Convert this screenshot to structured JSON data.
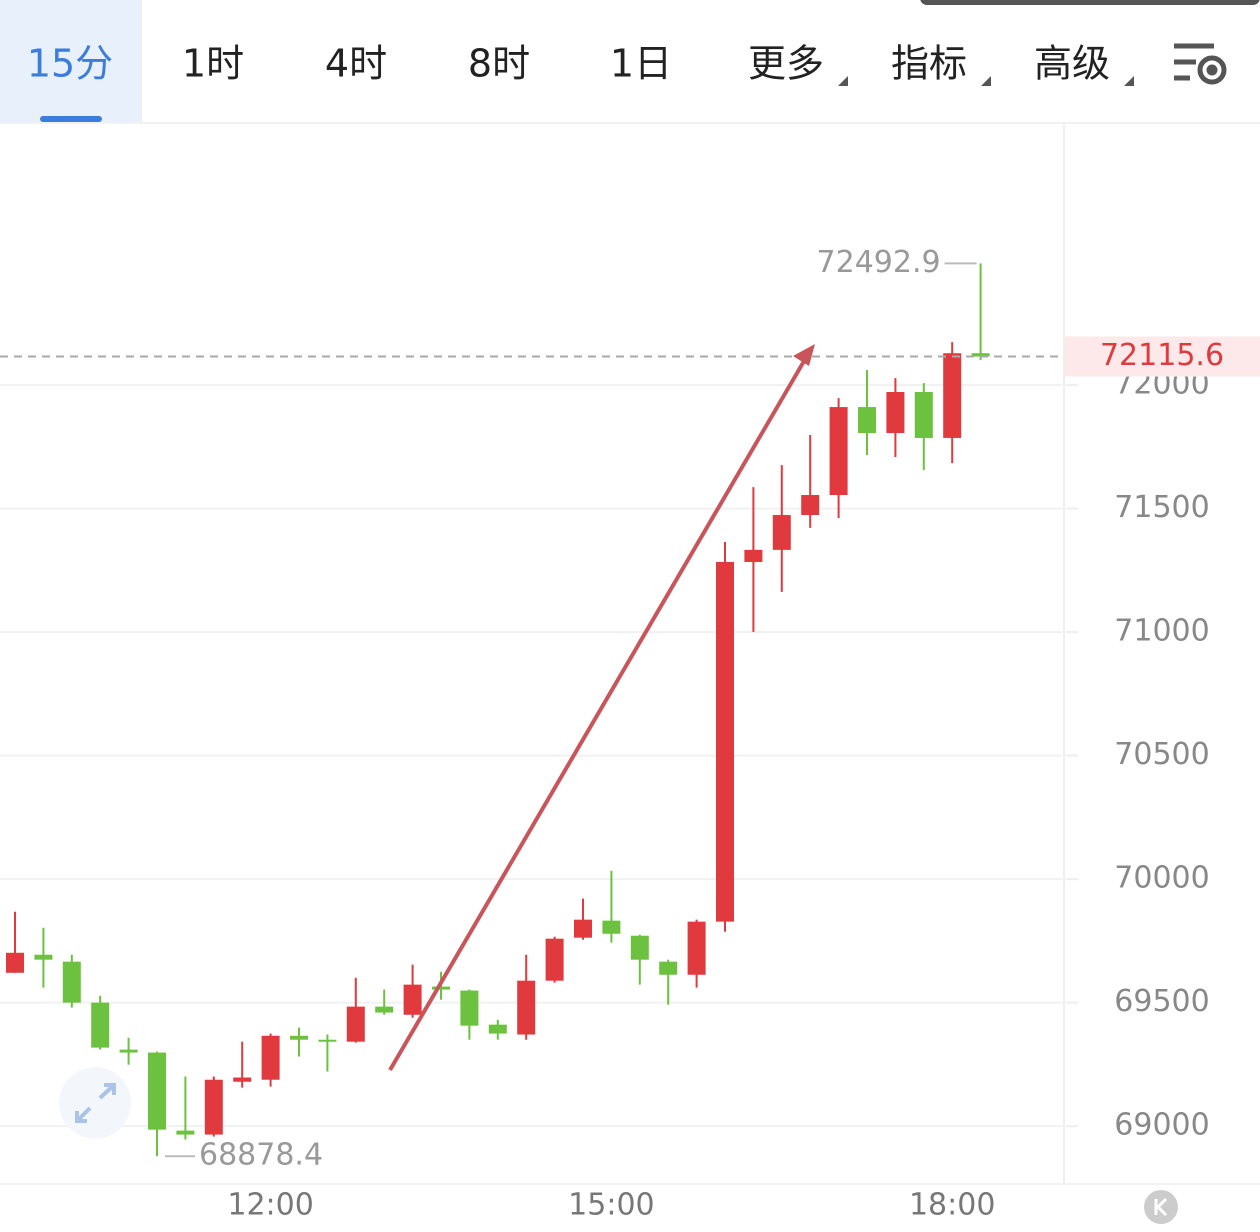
{
  "toolbar": {
    "tabs": [
      "15分",
      "1时",
      "4时",
      "8时",
      "1日",
      "更多",
      "指标",
      "高级"
    ]
  },
  "chart_data": {
    "type": "candlestick",
    "categories": [
      null,
      null,
      null,
      null,
      null,
      null,
      null,
      null,
      null,
      "12:00",
      null,
      null,
      null,
      null,
      null,
      null,
      null,
      null,
      null,
      null,
      null,
      "15:00",
      null,
      null,
      null,
      null,
      null,
      null,
      null,
      null,
      null,
      null,
      null,
      "18:00",
      null
    ],
    "open": [
      69621,
      69694,
      69666,
      69500,
      69310,
      69298,
      68982,
      68966,
      69180,
      69188,
      69366,
      69350,
      69342,
      69484,
      69451,
      69565,
      69549,
      69411,
      69371,
      69589,
      69763,
      69832,
      69771,
      69666,
      69613,
      69828,
      71284,
      71333,
      71474,
      71555,
      71911,
      71806,
      71972,
      71786,
      72129
    ],
    "high": [
      69868,
      69803,
      69694,
      69528,
      69358,
      69302,
      69201,
      69201,
      69342,
      69375,
      69399,
      69371,
      69601,
      69553,
      69654,
      69625,
      69553,
      69431,
      69694,
      69767,
      69921,
      70034,
      69775,
      69674,
      69836,
      71365,
      71587,
      71676,
      71798,
      71947,
      72061,
      72028,
      72008,
      72174,
      72492.9
    ],
    "low": [
      69621,
      69561,
      69480,
      69310,
      69249,
      68878.4,
      68946,
      68958,
      69156,
      69160,
      69282,
      69221,
      69338,
      69451,
      69439,
      69512,
      69350,
      69350,
      69350,
      69581,
      69755,
      69743,
      69573,
      69492,
      69561,
      69787,
      71001,
      71163,
      71422,
      71462,
      71717,
      71709,
      71656,
      71684,
      72101
    ],
    "close": [
      69702,
      69674,
      69500,
      69318,
      69298,
      68986,
      68966,
      69188,
      69197,
      69366,
      69350,
      69342,
      69484,
      69460,
      69573,
      69553,
      69407,
      69375,
      69589,
      69759,
      69836,
      69779,
      69674,
      69613,
      69828,
      71284,
      71333,
      71474,
      71555,
      71911,
      71806,
      71972,
      71786,
      72129,
      72115.6
    ],
    "up_color": "#e03a3e",
    "down_color": "#6cc13f",
    "ylim": [
      68770,
      73065
    ],
    "yticks": [
      69000,
      69500,
      70000,
      70500,
      71000,
      71500,
      72000
    ],
    "grid": true
  }
}
